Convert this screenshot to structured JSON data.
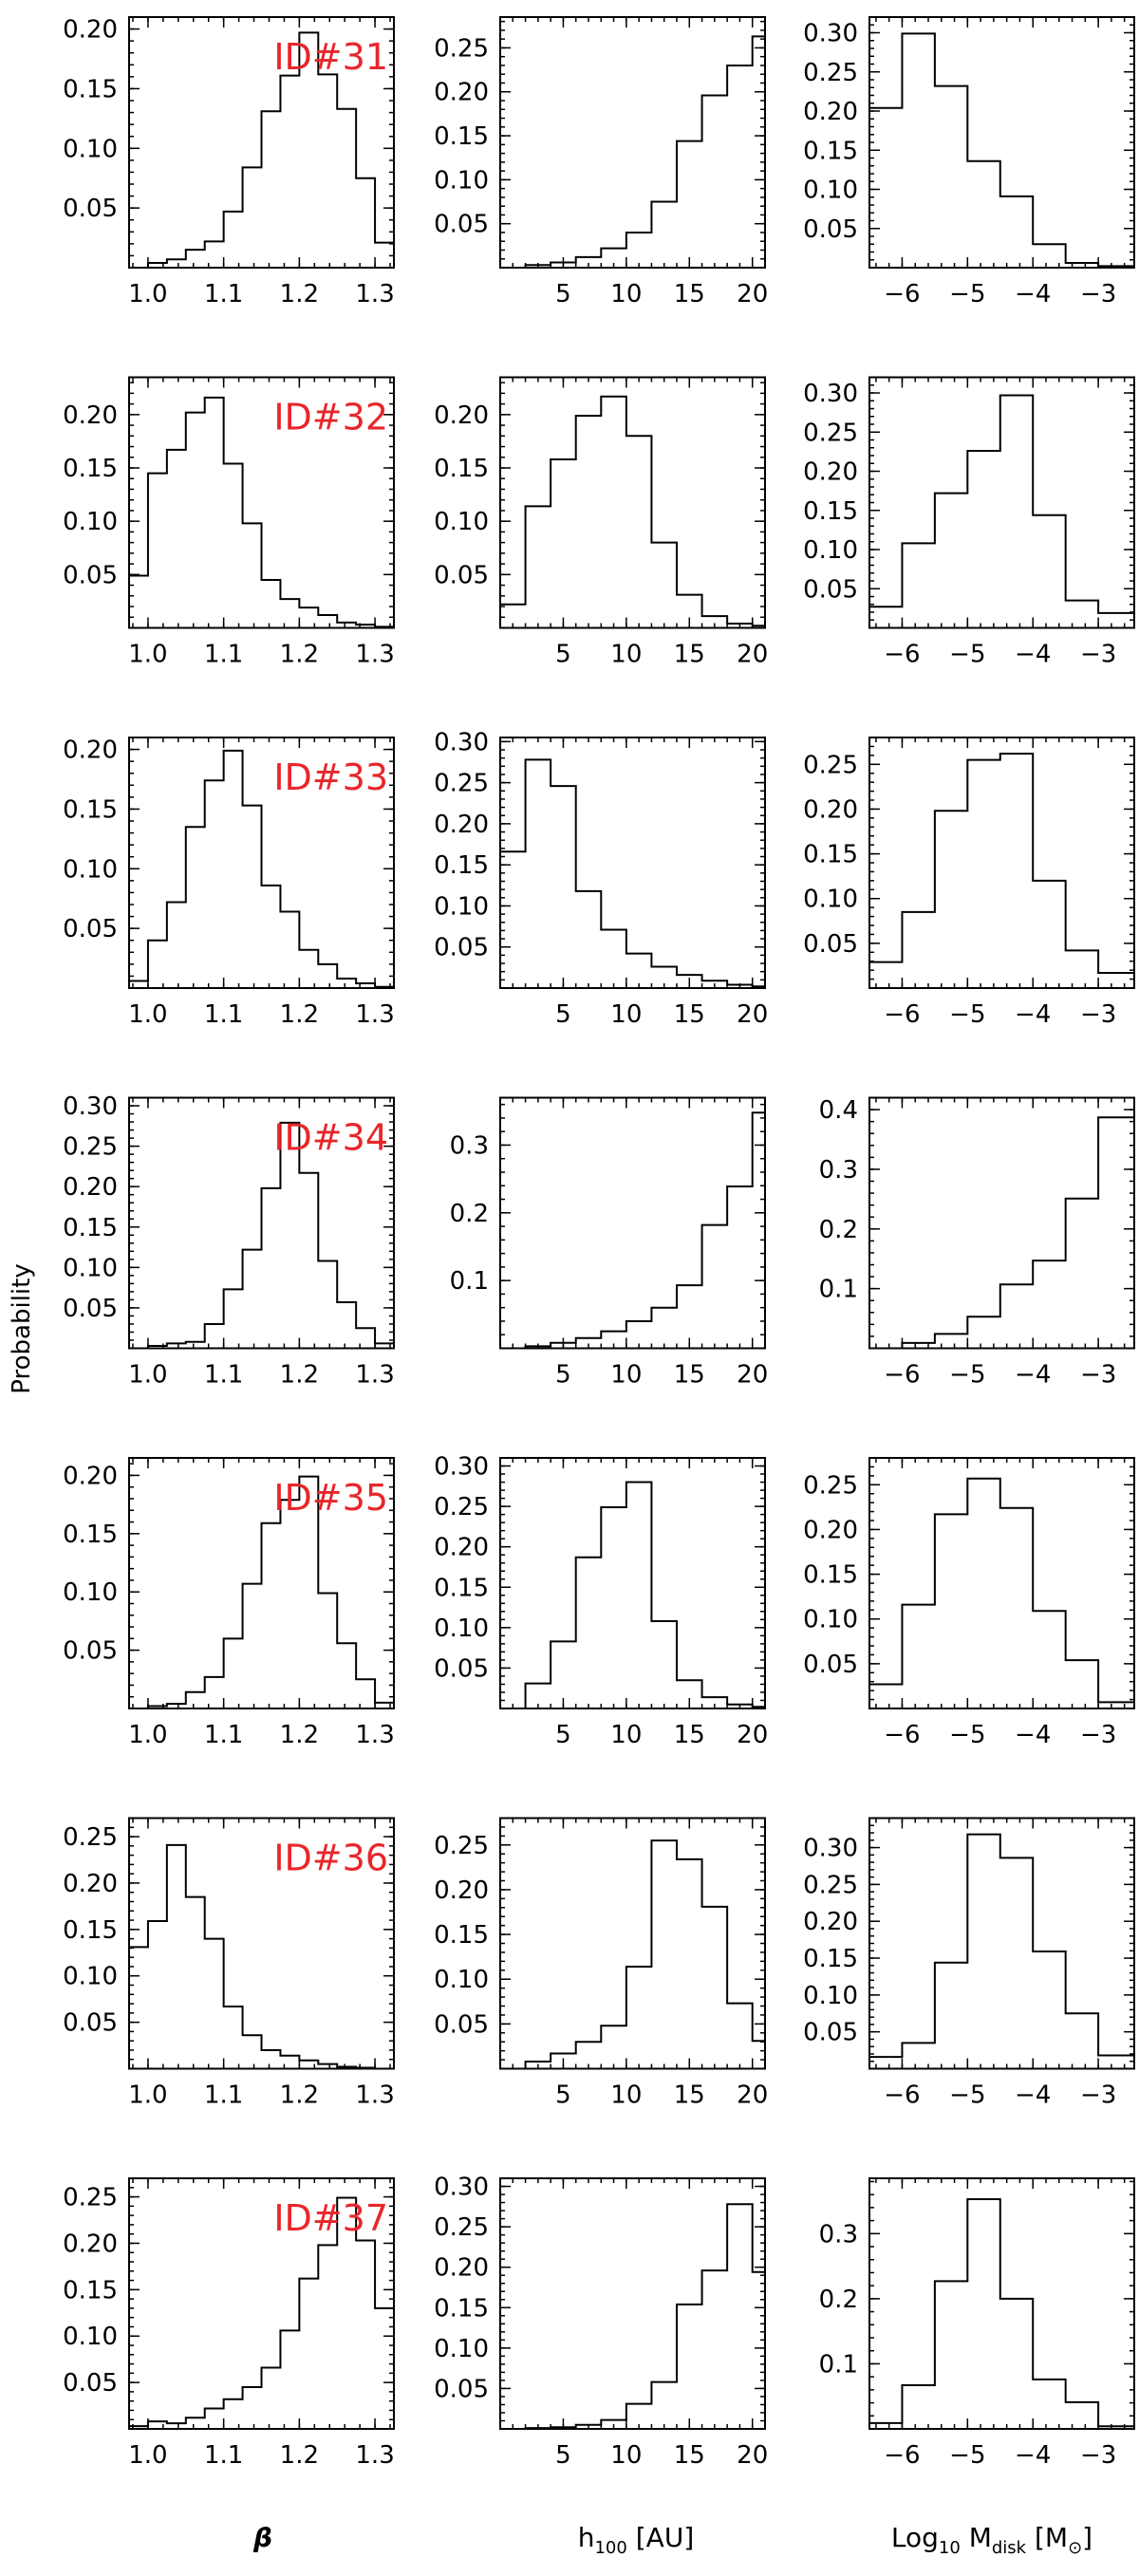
{
  "figure": {
    "ylabel": "Probability",
    "xlabels": [
      {
        "pre": "β",
        "sub": "",
        "post": ""
      },
      {
        "pre": "h",
        "sub": "100",
        "post": " [AU]"
      },
      {
        "pre": "Log",
        "sub": "10",
        "post": " M",
        "sub2": "disk",
        "post2": " [M",
        "sym": "⊙",
        "close": "]"
      }
    ],
    "colors": {
      "id_label": "#e8262a",
      "line": "#000000",
      "background": "#ffffff"
    }
  },
  "chart_data": [
    {
      "type": "histogram",
      "id": "ID#31",
      "param": "beta",
      "xlim": [
        0.975,
        1.325
      ],
      "ylim": [
        0,
        0.21
      ],
      "xticks": [
        "1.0",
        "1.1",
        "1.2",
        "1.3"
      ],
      "xtick_values": [
        1.0,
        1.1,
        1.2,
        1.3
      ],
      "yticks": [
        "0.05",
        "0.10",
        "0.15",
        "0.20"
      ],
      "ytick_values": [
        0.05,
        0.1,
        0.15,
        0.2
      ],
      "bin_edges": [
        1.0,
        1.025,
        1.05,
        1.075,
        1.1,
        1.125,
        1.15,
        1.175,
        1.2,
        1.225,
        1.25,
        1.275,
        1.3,
        1.325
      ],
      "values": [
        0.004,
        0.007,
        0.015,
        0.022,
        0.047,
        0.084,
        0.131,
        0.161,
        0.197,
        0.162,
        0.133,
        0.075,
        0.021
      ]
    },
    {
      "type": "histogram",
      "param": "h100",
      "xlim": [
        0,
        21
      ],
      "ylim": [
        0,
        0.285
      ],
      "xticks": [
        "5",
        "10",
        "15",
        "20"
      ],
      "xtick_values": [
        5,
        10,
        15,
        20
      ],
      "yticks": [
        "0.05",
        "0.10",
        "0.15",
        "0.20",
        "0.25"
      ],
      "ytick_values": [
        0.05,
        0.1,
        0.15,
        0.2,
        0.25
      ],
      "bin_edges": [
        2,
        4,
        6,
        8,
        10,
        12,
        14,
        16,
        18,
        20,
        21
      ],
      "values": [
        0.003,
        0.006,
        0.012,
        0.022,
        0.04,
        0.075,
        0.144,
        0.196,
        0.23,
        0.263
      ]
    },
    {
      "type": "histogram",
      "param": "log_mdisk",
      "xlim": [
        -6.5,
        -2.45
      ],
      "ylim": [
        0,
        0.32
      ],
      "xticks": [
        "−6",
        "−5",
        "−4",
        "−3"
      ],
      "xtick_values": [
        -6,
        -5,
        -4,
        -3
      ],
      "yticks": [
        "0.05",
        "0.10",
        "0.15",
        "0.20",
        "0.25",
        "0.30"
      ],
      "ytick_values": [
        0.05,
        0.1,
        0.15,
        0.2,
        0.25,
        0.3
      ],
      "bin_edges": [
        -6.5,
        -6.0,
        -5.5,
        -5.0,
        -4.5,
        -4.0,
        -3.5,
        -3.0,
        -2.45
      ],
      "values": [
        0.204,
        0.299,
        0.232,
        0.136,
        0.091,
        0.03,
        0.006,
        0.002
      ]
    },
    {
      "type": "histogram",
      "id": "ID#32",
      "param": "beta",
      "xlim": [
        0.975,
        1.325
      ],
      "ylim": [
        0,
        0.235
      ],
      "xticks": [
        "1.0",
        "1.1",
        "1.2",
        "1.3"
      ],
      "xtick_values": [
        1.0,
        1.1,
        1.2,
        1.3
      ],
      "yticks": [
        "0.05",
        "0.10",
        "0.15",
        "0.20"
      ],
      "ytick_values": [
        0.05,
        0.1,
        0.15,
        0.2
      ],
      "bin_edges": [
        0.975,
        1.0,
        1.025,
        1.05,
        1.075,
        1.1,
        1.125,
        1.15,
        1.175,
        1.2,
        1.225,
        1.25,
        1.275,
        1.3,
        1.325
      ],
      "values": [
        0.049,
        0.145,
        0.167,
        0.202,
        0.216,
        0.154,
        0.098,
        0.045,
        0.027,
        0.019,
        0.012,
        0.005,
        0.003,
        0.001
      ]
    },
    {
      "type": "histogram",
      "param": "h100",
      "xlim": [
        0,
        21
      ],
      "ylim": [
        0,
        0.235
      ],
      "xticks": [
        "5",
        "10",
        "15",
        "20"
      ],
      "xtick_values": [
        5,
        10,
        15,
        20
      ],
      "yticks": [
        "0.05",
        "0.10",
        "0.15",
        "0.20"
      ],
      "ytick_values": [
        0.05,
        0.1,
        0.15,
        0.2
      ],
      "bin_edges": [
        0,
        2,
        4,
        6,
        8,
        10,
        12,
        14,
        16,
        18,
        20,
        21
      ],
      "values": [
        0.022,
        0.114,
        0.158,
        0.199,
        0.217,
        0.18,
        0.08,
        0.031,
        0.011,
        0.004,
        0.002
      ]
    },
    {
      "type": "histogram",
      "param": "log_mdisk",
      "xlim": [
        -6.5,
        -2.45
      ],
      "ylim": [
        0,
        0.32
      ],
      "xticks": [
        "−6",
        "−5",
        "−4",
        "−3"
      ],
      "xtick_values": [
        -6,
        -5,
        -4,
        -3
      ],
      "yticks": [
        "0.05",
        "0.10",
        "0.15",
        "0.20",
        "0.25",
        "0.30"
      ],
      "ytick_values": [
        0.05,
        0.1,
        0.15,
        0.2,
        0.25,
        0.3
      ],
      "bin_edges": [
        -6.5,
        -6.0,
        -5.5,
        -5.0,
        -4.5,
        -4.0,
        -3.5,
        -3.0,
        -2.45
      ],
      "values": [
        0.027,
        0.108,
        0.172,
        0.226,
        0.297,
        0.144,
        0.035,
        0.019
      ]
    },
    {
      "type": "histogram",
      "id": "ID#33",
      "param": "beta",
      "xlim": [
        0.975,
        1.325
      ],
      "ylim": [
        0,
        0.21
      ],
      "xticks": [
        "1.0",
        "1.1",
        "1.2",
        "1.3"
      ],
      "xtick_values": [
        1.0,
        1.1,
        1.2,
        1.3
      ],
      "yticks": [
        "0.05",
        "0.10",
        "0.15",
        "0.20"
      ],
      "ytick_values": [
        0.05,
        0.1,
        0.15,
        0.2
      ],
      "bin_edges": [
        0.975,
        1.0,
        1.025,
        1.05,
        1.075,
        1.1,
        1.125,
        1.15,
        1.175,
        1.2,
        1.225,
        1.25,
        1.275,
        1.3,
        1.325
      ],
      "values": [
        0.006,
        0.04,
        0.072,
        0.135,
        0.174,
        0.199,
        0.153,
        0.086,
        0.064,
        0.032,
        0.02,
        0.008,
        0.004,
        0.001
      ]
    },
    {
      "type": "histogram",
      "param": "h100",
      "xlim": [
        0,
        21
      ],
      "ylim": [
        0,
        0.305
      ],
      "xticks": [
        "5",
        "10",
        "15",
        "20"
      ],
      "xtick_values": [
        5,
        10,
        15,
        20
      ],
      "yticks": [
        "0.05",
        "0.10",
        "0.15",
        "0.20",
        "0.25",
        "0.30"
      ],
      "ytick_values": [
        0.05,
        0.1,
        0.15,
        0.2,
        0.25,
        0.3
      ],
      "bin_edges": [
        0,
        2,
        4,
        6,
        8,
        10,
        12,
        14,
        16,
        18,
        20,
        21
      ],
      "values": [
        0.166,
        0.278,
        0.246,
        0.118,
        0.071,
        0.042,
        0.026,
        0.016,
        0.009,
        0.004,
        0.002
      ]
    },
    {
      "type": "histogram",
      "param": "log_mdisk",
      "xlim": [
        -6.5,
        -2.45
      ],
      "ylim": [
        0,
        0.28
      ],
      "xticks": [
        "−6",
        "−5",
        "−4",
        "−3"
      ],
      "xtick_values": [
        -6,
        -5,
        -4,
        -3
      ],
      "yticks": [
        "0.05",
        "0.10",
        "0.15",
        "0.20",
        "0.25"
      ],
      "ytick_values": [
        0.05,
        0.1,
        0.15,
        0.2,
        0.25
      ],
      "bin_edges": [
        -6.5,
        -6.0,
        -5.5,
        -5.0,
        -4.5,
        -4.0,
        -3.5,
        -3.0,
        -2.45
      ],
      "values": [
        0.029,
        0.085,
        0.198,
        0.255,
        0.262,
        0.12,
        0.042,
        0.017
      ]
    },
    {
      "type": "histogram",
      "id": "ID#34",
      "param": "beta",
      "xlim": [
        0.975,
        1.325
      ],
      "ylim": [
        0,
        0.31
      ],
      "xticks": [
        "1.0",
        "1.1",
        "1.2",
        "1.3"
      ],
      "xtick_values": [
        1.0,
        1.1,
        1.2,
        1.3
      ],
      "yticks": [
        "0.05",
        "0.10",
        "0.15",
        "0.20",
        "0.25",
        "0.30"
      ],
      "ytick_values": [
        0.05,
        0.1,
        0.15,
        0.2,
        0.25,
        0.3
      ],
      "bin_edges": [
        1.0,
        1.025,
        1.05,
        1.075,
        1.1,
        1.125,
        1.15,
        1.175,
        1.2,
        1.225,
        1.25,
        1.275,
        1.3,
        1.325
      ],
      "values": [
        0.003,
        0.006,
        0.008,
        0.03,
        0.073,
        0.122,
        0.198,
        0.279,
        0.217,
        0.108,
        0.057,
        0.025,
        0.006
      ]
    },
    {
      "type": "histogram",
      "param": "h100",
      "xlim": [
        0,
        21
      ],
      "ylim": [
        0,
        0.37
      ],
      "xticks": [
        "5",
        "10",
        "15",
        "20"
      ],
      "xtick_values": [
        5,
        10,
        15,
        20
      ],
      "yticks": [
        "0.1",
        "0.2",
        "0.3"
      ],
      "ytick_values": [
        0.1,
        0.2,
        0.3
      ],
      "bin_edges": [
        2,
        4,
        6,
        8,
        10,
        12,
        14,
        16,
        18,
        20,
        21
      ],
      "values": [
        0.003,
        0.008,
        0.015,
        0.025,
        0.04,
        0.06,
        0.093,
        0.182,
        0.239,
        0.348
      ]
    },
    {
      "type": "histogram",
      "param": "log_mdisk",
      "xlim": [
        -6.5,
        -2.45
      ],
      "ylim": [
        0,
        0.42
      ],
      "xticks": [
        "−6",
        "−5",
        "−4",
        "−3"
      ],
      "xtick_values": [
        -6,
        -5,
        -4,
        -3
      ],
      "yticks": [
        "0.1",
        "0.2",
        "0.3",
        "0.4"
      ],
      "ytick_values": [
        0.1,
        0.2,
        0.3,
        0.4
      ],
      "bin_edges": [
        -6.0,
        -5.5,
        -5.0,
        -4.5,
        -4.0,
        -3.5,
        -3.0,
        -2.45
      ],
      "values": [
        0.009,
        0.024,
        0.053,
        0.107,
        0.147,
        0.251,
        0.387
      ]
    },
    {
      "type": "histogram",
      "id": "ID#35",
      "param": "beta",
      "xlim": [
        0.975,
        1.325
      ],
      "ylim": [
        0,
        0.215
      ],
      "xticks": [
        "1.0",
        "1.1",
        "1.2",
        "1.3"
      ],
      "xtick_values": [
        1.0,
        1.1,
        1.2,
        1.3
      ],
      "yticks": [
        "0.05",
        "0.10",
        "0.15",
        "0.20"
      ],
      "ytick_values": [
        0.05,
        0.1,
        0.15,
        0.2
      ],
      "bin_edges": [
        1.0,
        1.025,
        1.05,
        1.075,
        1.1,
        1.125,
        1.15,
        1.175,
        1.2,
        1.225,
        1.25,
        1.275,
        1.3,
        1.325
      ],
      "values": [
        0.002,
        0.004,
        0.014,
        0.027,
        0.06,
        0.107,
        0.159,
        0.179,
        0.199,
        0.099,
        0.056,
        0.025,
        0.005
      ]
    },
    {
      "type": "histogram",
      "param": "h100",
      "xlim": [
        0,
        21
      ],
      "ylim": [
        0,
        0.31
      ],
      "xticks": [
        "5",
        "10",
        "15",
        "20"
      ],
      "xtick_values": [
        5,
        10,
        15,
        20
      ],
      "yticks": [
        "0.05",
        "0.10",
        "0.15",
        "0.20",
        "0.25",
        "0.30"
      ],
      "ytick_values": [
        0.05,
        0.1,
        0.15,
        0.2,
        0.25,
        0.3
      ],
      "bin_edges": [
        2,
        4,
        6,
        8,
        10,
        12,
        14,
        16,
        18,
        20,
        21
      ],
      "values": [
        0.031,
        0.083,
        0.187,
        0.249,
        0.28,
        0.108,
        0.035,
        0.014,
        0.005,
        0.002
      ]
    },
    {
      "type": "histogram",
      "param": "log_mdisk",
      "xlim": [
        -6.5,
        -2.45
      ],
      "ylim": [
        0,
        0.28
      ],
      "xticks": [
        "−6",
        "−5",
        "−4",
        "−3"
      ],
      "xtick_values": [
        -6,
        -5,
        -4,
        -3
      ],
      "yticks": [
        "0.05",
        "0.10",
        "0.15",
        "0.20",
        "0.25"
      ],
      "ytick_values": [
        0.05,
        0.1,
        0.15,
        0.2,
        0.25
      ],
      "bin_edges": [
        -6.5,
        -6.0,
        -5.5,
        -5.0,
        -4.5,
        -4.0,
        -3.5,
        -3.0,
        -2.45
      ],
      "values": [
        0.027,
        0.116,
        0.217,
        0.257,
        0.224,
        0.109,
        0.054,
        0.007
      ]
    },
    {
      "type": "histogram",
      "id": "ID#36",
      "param": "beta",
      "xlim": [
        0.975,
        1.325
      ],
      "ylim": [
        0,
        0.27
      ],
      "xticks": [
        "1.0",
        "1.1",
        "1.2",
        "1.3"
      ],
      "xtick_values": [
        1.0,
        1.1,
        1.2,
        1.3
      ],
      "yticks": [
        "0.05",
        "0.10",
        "0.15",
        "0.20",
        "0.25"
      ],
      "ytick_values": [
        0.05,
        0.1,
        0.15,
        0.2,
        0.25
      ],
      "bin_edges": [
        0.975,
        1.0,
        1.025,
        1.05,
        1.075,
        1.1,
        1.125,
        1.15,
        1.175,
        1.2,
        1.225,
        1.25,
        1.275,
        1.3,
        1.325
      ],
      "values": [
        0.131,
        0.159,
        0.241,
        0.185,
        0.14,
        0.067,
        0.036,
        0.02,
        0.014,
        0.009,
        0.005,
        0.002,
        0.001,
        0.0
      ]
    },
    {
      "type": "histogram",
      "param": "h100",
      "xlim": [
        0,
        21
      ],
      "ylim": [
        0,
        0.28
      ],
      "xticks": [
        "5",
        "10",
        "15",
        "20"
      ],
      "xtick_values": [
        5,
        10,
        15,
        20
      ],
      "yticks": [
        "0.05",
        "0.10",
        "0.15",
        "0.20",
        "0.25"
      ],
      "ytick_values": [
        0.05,
        0.1,
        0.15,
        0.2,
        0.25
      ],
      "bin_edges": [
        2,
        4,
        6,
        8,
        10,
        12,
        14,
        16,
        18,
        20,
        21
      ],
      "values": [
        0.008,
        0.017,
        0.03,
        0.048,
        0.114,
        0.255,
        0.234,
        0.181,
        0.073,
        0.031
      ]
    },
    {
      "type": "histogram",
      "param": "log_mdisk",
      "xlim": [
        -6.5,
        -2.45
      ],
      "ylim": [
        0,
        0.34
      ],
      "xticks": [
        "−6",
        "−5",
        "−4",
        "−3"
      ],
      "xtick_values": [
        -6,
        -5,
        -4,
        -3
      ],
      "yticks": [
        "0.05",
        "0.10",
        "0.15",
        "0.20",
        "0.25",
        "0.30"
      ],
      "ytick_values": [
        0.05,
        0.1,
        0.15,
        0.2,
        0.25,
        0.3
      ],
      "bin_edges": [
        -6.5,
        -6.0,
        -5.5,
        -5.0,
        -4.5,
        -4.0,
        -3.5,
        -3.0,
        -2.45
      ],
      "values": [
        0.016,
        0.035,
        0.144,
        0.318,
        0.286,
        0.159,
        0.075,
        0.018
      ]
    },
    {
      "type": "histogram",
      "id": "ID#37",
      "param": "beta",
      "xlim": [
        0.975,
        1.325
      ],
      "ylim": [
        0,
        0.27
      ],
      "xticks": [
        "1.0",
        "1.1",
        "1.2",
        "1.3"
      ],
      "xtick_values": [
        1.0,
        1.1,
        1.2,
        1.3
      ],
      "yticks": [
        "0.05",
        "0.10",
        "0.15",
        "0.20",
        "0.25"
      ],
      "ytick_values": [
        0.05,
        0.1,
        0.15,
        0.2,
        0.25
      ],
      "bin_edges": [
        0.975,
        1.0,
        1.025,
        1.05,
        1.075,
        1.1,
        1.125,
        1.15,
        1.175,
        1.2,
        1.225,
        1.25,
        1.275,
        1.3,
        1.325
      ],
      "values": [
        0.003,
        0.008,
        0.006,
        0.012,
        0.022,
        0.032,
        0.045,
        0.066,
        0.106,
        0.162,
        0.198,
        0.249,
        0.203,
        0.13
      ]
    },
    {
      "type": "histogram",
      "param": "h100",
      "xlim": [
        0,
        21
      ],
      "ylim": [
        0,
        0.31
      ],
      "xticks": [
        "5",
        "10",
        "15",
        "20"
      ],
      "xtick_values": [
        5,
        10,
        15,
        20
      ],
      "yticks": [
        "0.05",
        "0.10",
        "0.15",
        "0.20",
        "0.25",
        "0.30"
      ],
      "ytick_values": [
        0.05,
        0.1,
        0.15,
        0.2,
        0.25,
        0.3
      ],
      "bin_edges": [
        2,
        4,
        6,
        8,
        10,
        12,
        14,
        16,
        18,
        20,
        21
      ],
      "values": [
        0.001,
        0.002,
        0.005,
        0.011,
        0.031,
        0.058,
        0.154,
        0.196,
        0.278,
        0.194
      ]
    },
    {
      "type": "histogram",
      "param": "log_mdisk",
      "xlim": [
        -6.5,
        -2.45
      ],
      "ylim": [
        0,
        0.385
      ],
      "xticks": [
        "−6",
        "−5",
        "−4",
        "−3"
      ],
      "xtick_values": [
        -6,
        -5,
        -4,
        -3
      ],
      "yticks": [
        "0.1",
        "0.2",
        "0.3"
      ],
      "ytick_values": [
        0.1,
        0.2,
        0.3
      ],
      "bin_edges": [
        -6.5,
        -6.0,
        -5.5,
        -5.0,
        -4.5,
        -4.0,
        -3.5,
        -3.0,
        -2.45
      ],
      "values": [
        0.009,
        0.067,
        0.227,
        0.353,
        0.2,
        0.076,
        0.041,
        0.004
      ]
    }
  ]
}
